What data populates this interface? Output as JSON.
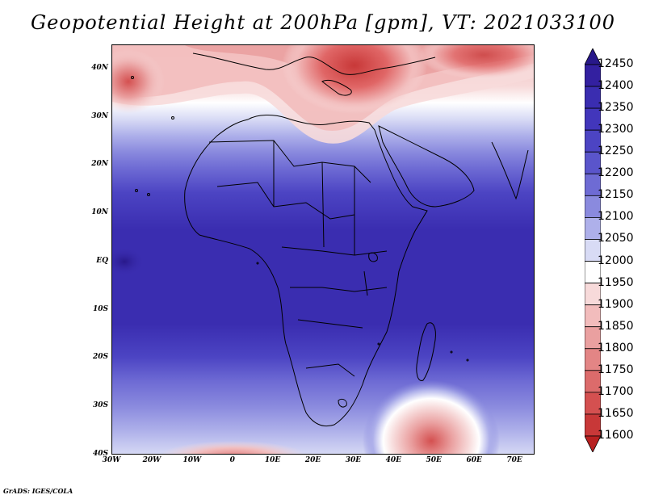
{
  "title": "Geopotential Height at 200hPa [gpm], VT: 2021033100",
  "credit": "GrADS: IGES/COLA",
  "lat_labels": [
    {
      "text": "40N",
      "lat": 40
    },
    {
      "text": "30N",
      "lat": 30
    },
    {
      "text": "20N",
      "lat": 20
    },
    {
      "text": "10N",
      "lat": 10
    },
    {
      "text": "EQ",
      "lat": 0
    },
    {
      "text": "10S",
      "lat": -10
    },
    {
      "text": "20S",
      "lat": -20
    },
    {
      "text": "30S",
      "lat": -30
    },
    {
      "text": "40S",
      "lat": -40
    }
  ],
  "lon_labels": [
    {
      "text": "30W",
      "lon": -30
    },
    {
      "text": "20W",
      "lon": -20
    },
    {
      "text": "10W",
      "lon": -10
    },
    {
      "text": "0",
      "lon": 0
    },
    {
      "text": "10E",
      "lon": 10
    },
    {
      "text": "20E",
      "lon": 20
    },
    {
      "text": "30E",
      "lon": 30
    },
    {
      "text": "40E",
      "lon": 40
    },
    {
      "text": "50E",
      "lon": 50
    },
    {
      "text": "60E",
      "lon": 60
    },
    {
      "text": "70E",
      "lon": 70
    }
  ],
  "extent": {
    "lon_min": -30,
    "lon_max": 75,
    "lat_min": -40,
    "lat_max": 45
  },
  "colorbar": {
    "levels": [
      "12450",
      "12400",
      "12350",
      "12300",
      "12250",
      "12200",
      "12150",
      "12100",
      "12050",
      "12000",
      "11950",
      "11900",
      "11850",
      "11800",
      "11750",
      "11700",
      "11650",
      "11600"
    ],
    "colors": [
      "#28188a",
      "#3320a0",
      "#3a2db0",
      "#4236bb",
      "#4c44c3",
      "#5a55cb",
      "#6e6bd4",
      "#8a8ade",
      "#aeb0ea",
      "#d8dbf5",
      "#ffffff",
      "#f7dada",
      "#f2bcbc",
      "#eaa0a0",
      "#e38585",
      "#dc6b6b",
      "#d45050",
      "#c83838",
      "#b82020"
    ]
  }
}
